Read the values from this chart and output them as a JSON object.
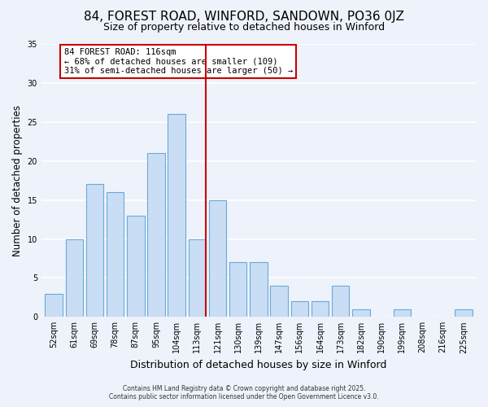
{
  "title": "84, FOREST ROAD, WINFORD, SANDOWN, PO36 0JZ",
  "subtitle": "Size of property relative to detached houses in Winford",
  "xlabel": "Distribution of detached houses by size in Winford",
  "ylabel": "Number of detached properties",
  "bar_labels": [
    "52sqm",
    "61sqm",
    "69sqm",
    "78sqm",
    "87sqm",
    "95sqm",
    "104sqm",
    "113sqm",
    "121sqm",
    "130sqm",
    "139sqm",
    "147sqm",
    "156sqm",
    "164sqm",
    "173sqm",
    "182sqm",
    "190sqm",
    "199sqm",
    "208sqm",
    "216sqm",
    "225sqm"
  ],
  "bar_values": [
    3,
    10,
    17,
    16,
    13,
    21,
    26,
    10,
    15,
    7,
    7,
    4,
    2,
    2,
    4,
    1,
    0,
    1,
    0,
    0,
    1
  ],
  "bar_color": "#c9ddf5",
  "bar_edge_color": "#6aaad8",
  "vline_index": 7,
  "vline_color": "#cc0000",
  "annotation_text": "84 FOREST ROAD: 116sqm\n← 68% of detached houses are smaller (109)\n31% of semi-detached houses are larger (50) →",
  "annotation_box_color": "#cc0000",
  "ylim": [
    0,
    35
  ],
  "yticks": [
    0,
    5,
    10,
    15,
    20,
    25,
    30,
    35
  ],
  "footnote": "Contains HM Land Registry data © Crown copyright and database right 2025.\nContains public sector information licensed under the Open Government Licence v3.0.",
  "background_color": "#eef2fb",
  "grid_color": "#ffffff",
  "title_fontsize": 11,
  "subtitle_fontsize": 9,
  "tick_fontsize": 7,
  "ylabel_fontsize": 8.5,
  "xlabel_fontsize": 9
}
